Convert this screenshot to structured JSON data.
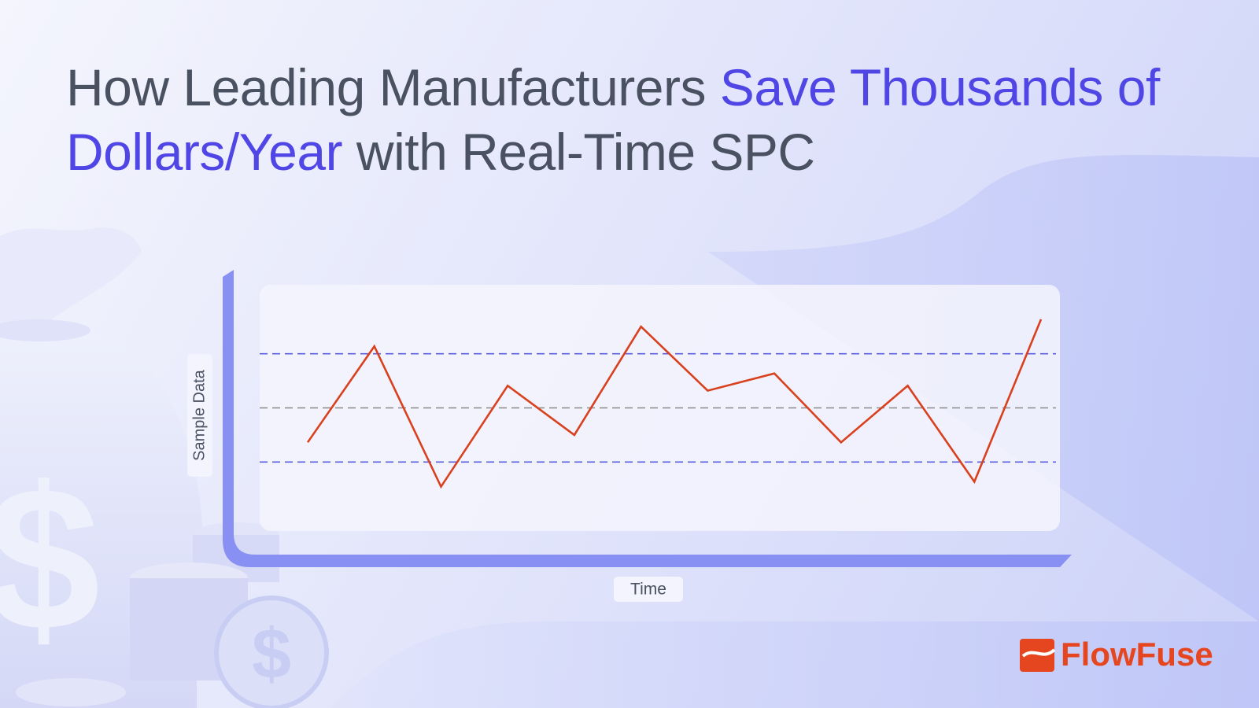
{
  "title": [
    {
      "text": "How Leading Manufacturers ",
      "color": "#4a5161"
    },
    {
      "text": "Save Thousands of Dollars/Year",
      "color": "#4f46e5"
    },
    {
      "text": " with Real-Time SPC",
      "color": "#4a5161"
    }
  ],
  "brand": "FlowFuse",
  "chart_data": {
    "type": "line",
    "y_label": "Sample Data",
    "x_label": "Time",
    "ylim": [
      0,
      100
    ],
    "series": [
      {
        "color": "#d9411e",
        "values": [
          36,
          75,
          18,
          59,
          39,
          83,
          57,
          64,
          36,
          59,
          20,
          86
        ]
      }
    ],
    "reference_lines": [
      {
        "value": 72,
        "color": "#5b5fdc"
      },
      {
        "value": 50,
        "color": "#8a8a8a"
      },
      {
        "value": 28,
        "color": "#5b5fdc"
      }
    ]
  }
}
